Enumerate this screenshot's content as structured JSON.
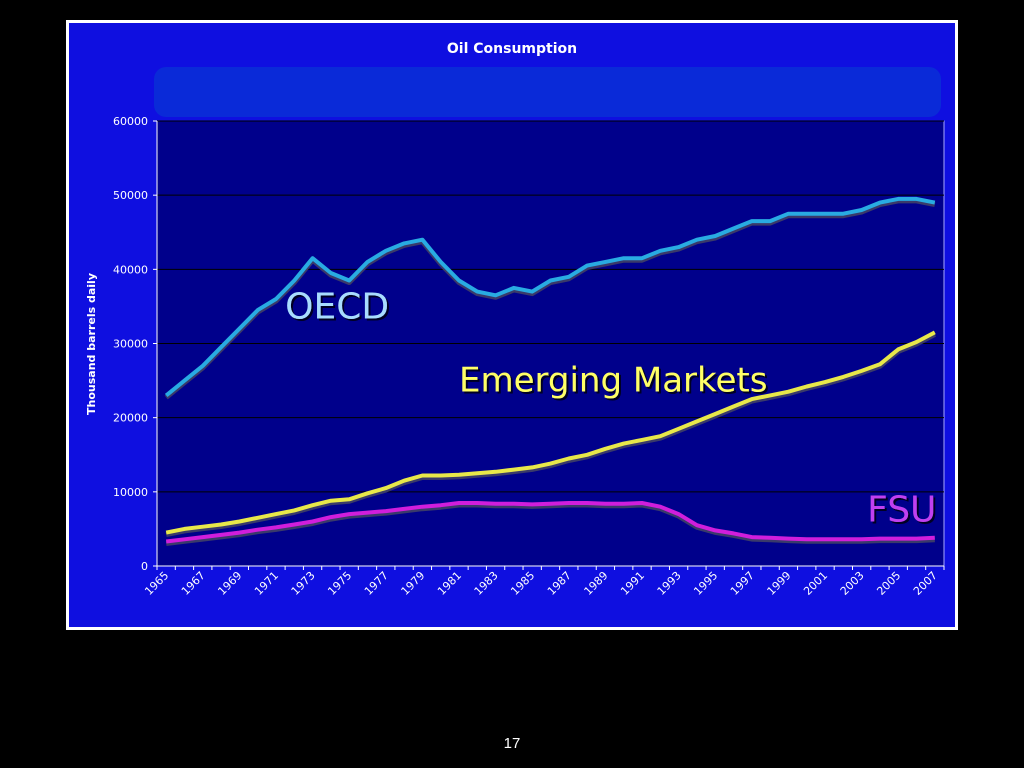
{
  "slide": {
    "page_number": "17",
    "background": "#000000"
  },
  "chart_data": {
    "type": "line",
    "title": "Oil Consumption",
    "ylabel": "Thousand barrels daily",
    "xlabel": "",
    "ylim": [
      0,
      60000
    ],
    "yticks": [
      0,
      10000,
      20000,
      30000,
      40000,
      50000,
      60000
    ],
    "x": [
      1965,
      1966,
      1967,
      1968,
      1969,
      1970,
      1971,
      1972,
      1973,
      1974,
      1975,
      1976,
      1977,
      1978,
      1979,
      1980,
      1981,
      1982,
      1983,
      1984,
      1985,
      1986,
      1987,
      1988,
      1989,
      1990,
      1991,
      1992,
      1993,
      1994,
      1995,
      1996,
      1997,
      1998,
      1999,
      2000,
      2001,
      2002,
      2003,
      2004,
      2005,
      2006,
      2007
    ],
    "xtick_labels": [
      "1965",
      "1967",
      "1969",
      "1971",
      "1973",
      "1975",
      "1977",
      "1979",
      "1981",
      "1983",
      "1985",
      "1987",
      "1989",
      "1991",
      "1993",
      "1995",
      "1997",
      "1999",
      "2001",
      "2003",
      "2005",
      "2007"
    ],
    "grid": true,
    "colors": {
      "plot_background": "#00008b",
      "frame_background": "#0f0fe0",
      "gridline": "#000000"
    },
    "series": [
      {
        "name": "OECD",
        "color": "#29abe2",
        "label_color": "#a8dcff",
        "values": [
          23000,
          25000,
          27000,
          29500,
          32000,
          34500,
          36000,
          38500,
          41500,
          39500,
          38500,
          41000,
          42500,
          43500,
          44000,
          41000,
          38500,
          37000,
          36500,
          37500,
          37000,
          38500,
          39000,
          40500,
          41000,
          41500,
          41500,
          42500,
          43000,
          44000,
          44500,
          45500,
          46500,
          46500,
          47500,
          47500,
          47500,
          47500,
          48000,
          49000,
          49500,
          49500,
          49000
        ]
      },
      {
        "name": "Emerging Markets",
        "color": "#e8e84a",
        "label_color": "#ffff66",
        "values": [
          4500,
          5000,
          5300,
          5600,
          6000,
          6500,
          7000,
          7500,
          8200,
          8800,
          9000,
          9800,
          10500,
          11500,
          12200,
          12200,
          12300,
          12500,
          12700,
          13000,
          13300,
          13800,
          14500,
          15000,
          15800,
          16500,
          17000,
          17500,
          18500,
          19500,
          20500,
          21500,
          22500,
          23000,
          23500,
          24200,
          24800,
          25500,
          26300,
          27200,
          29200,
          30200,
          31500
        ]
      },
      {
        "name": "FSU",
        "color": "#d01edc",
        "label_color": "#c040f0",
        "values": [
          3300,
          3600,
          3900,
          4200,
          4500,
          4900,
          5200,
          5600,
          6000,
          6600,
          7000,
          7200,
          7400,
          7700,
          8000,
          8200,
          8500,
          8500,
          8400,
          8400,
          8300,
          8400,
          8500,
          8500,
          8400,
          8400,
          8500,
          8000,
          7000,
          5500,
          4800,
          4400,
          3900,
          3800,
          3700,
          3600,
          3600,
          3600,
          3600,
          3700,
          3700,
          3700,
          3800
        ]
      }
    ]
  }
}
